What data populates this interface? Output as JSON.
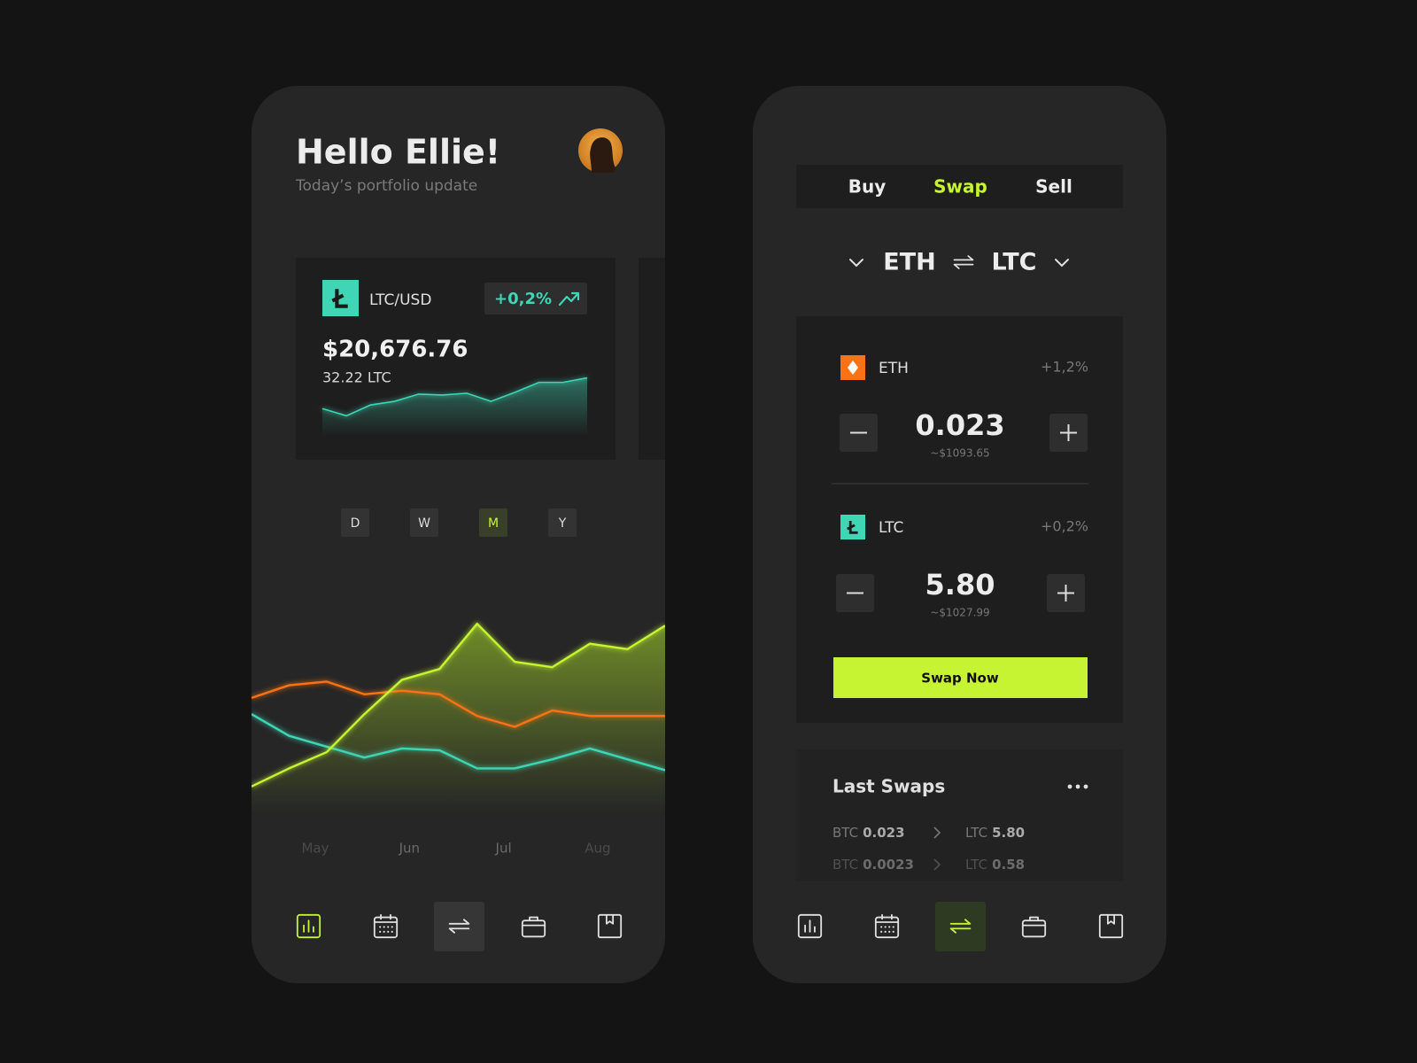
{
  "portfolio_screen": {
    "greeting": "Hello Ellie!",
    "subtitle": "Today’s portfolio update",
    "pair_card": {
      "pair": "LTC/USD",
      "change": "+0,2%",
      "price": "$20,676.76",
      "holding": "32.22 LTC",
      "sparkline": {
        "color": "#3ed6b5",
        "values": [
          28,
          20,
          32,
          36,
          44,
          43,
          45,
          36,
          46,
          57,
          57,
          62
        ]
      }
    },
    "periods": [
      "D",
      "W",
      "M",
      "Y"
    ],
    "active_period": 2,
    "chart": {
      "x_labels": [
        "May",
        "Jun",
        "Jul",
        "Aug"
      ],
      "series": [
        {
          "color": "#f97316",
          "values": [
            64,
            71,
            73,
            66,
            68,
            66,
            54,
            48,
            57,
            54,
            54,
            54
          ]
        },
        {
          "color": "#3ed6b5",
          "values": [
            55,
            43,
            37,
            31,
            36,
            35,
            25,
            25,
            30,
            36,
            30,
            24
          ]
        },
        {
          "color": "#c6f432",
          "values": [
            15,
            25,
            34,
            55,
            74,
            80,
            105,
            84,
            81,
            94,
            91,
            104
          ]
        }
      ]
    }
  },
  "swap_screen": {
    "tabs": [
      "Buy",
      "Swap",
      "Sell"
    ],
    "active_tab": 1,
    "pair": {
      "from": "ETH",
      "to": "LTC"
    },
    "assets": [
      {
        "symbol": "ETH",
        "change": "+1,2%",
        "amount": "0.023",
        "usd": "~$1093.65"
      },
      {
        "symbol": "LTC",
        "change": "+0,2%",
        "amount": "5.80",
        "usd": "~$1027.99"
      }
    ],
    "button": "Swap Now",
    "last_swaps": {
      "title": "Last Swaps",
      "rows": [
        {
          "from_symbol": "BTC",
          "from_amount": "0.023",
          "to_symbol": "LTC",
          "to_amount": "5.80"
        },
        {
          "from_symbol": "BTC",
          "from_amount": "0.0023",
          "to_symbol": "LTC",
          "to_amount": "0.58"
        }
      ]
    }
  }
}
